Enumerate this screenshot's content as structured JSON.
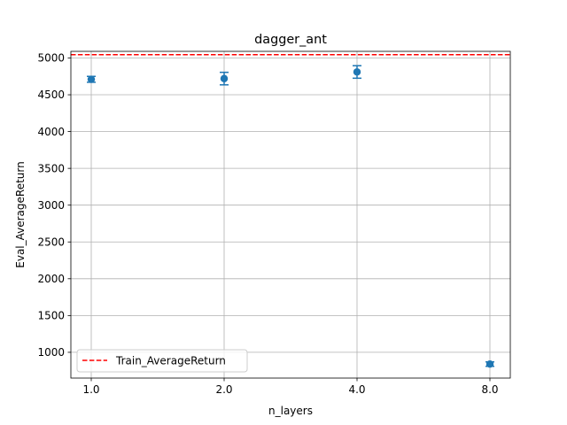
{
  "chart_data": {
    "type": "scatter",
    "title": "dagger_ant",
    "xlabel": "n_layers",
    "ylabel": "Eval_AverageReturn",
    "categories": [
      "1.0",
      "2.0",
      "4.0",
      "8.0"
    ],
    "series": [
      {
        "values": [
          4710,
          4720,
          4810,
          840
        ],
        "errors": [
          40,
          85,
          85,
          30
        ],
        "color": "#1f77b4"
      }
    ],
    "reference_line": {
      "name": "Train_AverageReturn",
      "value": 5045,
      "color": "#ff0000",
      "style": "dashed"
    },
    "yticks": [
      1000,
      1500,
      2000,
      2500,
      3000,
      3500,
      4000,
      4500,
      5000
    ],
    "ylim": [
      650,
      5090
    ],
    "grid": true,
    "legend_placement": "lower-left"
  }
}
